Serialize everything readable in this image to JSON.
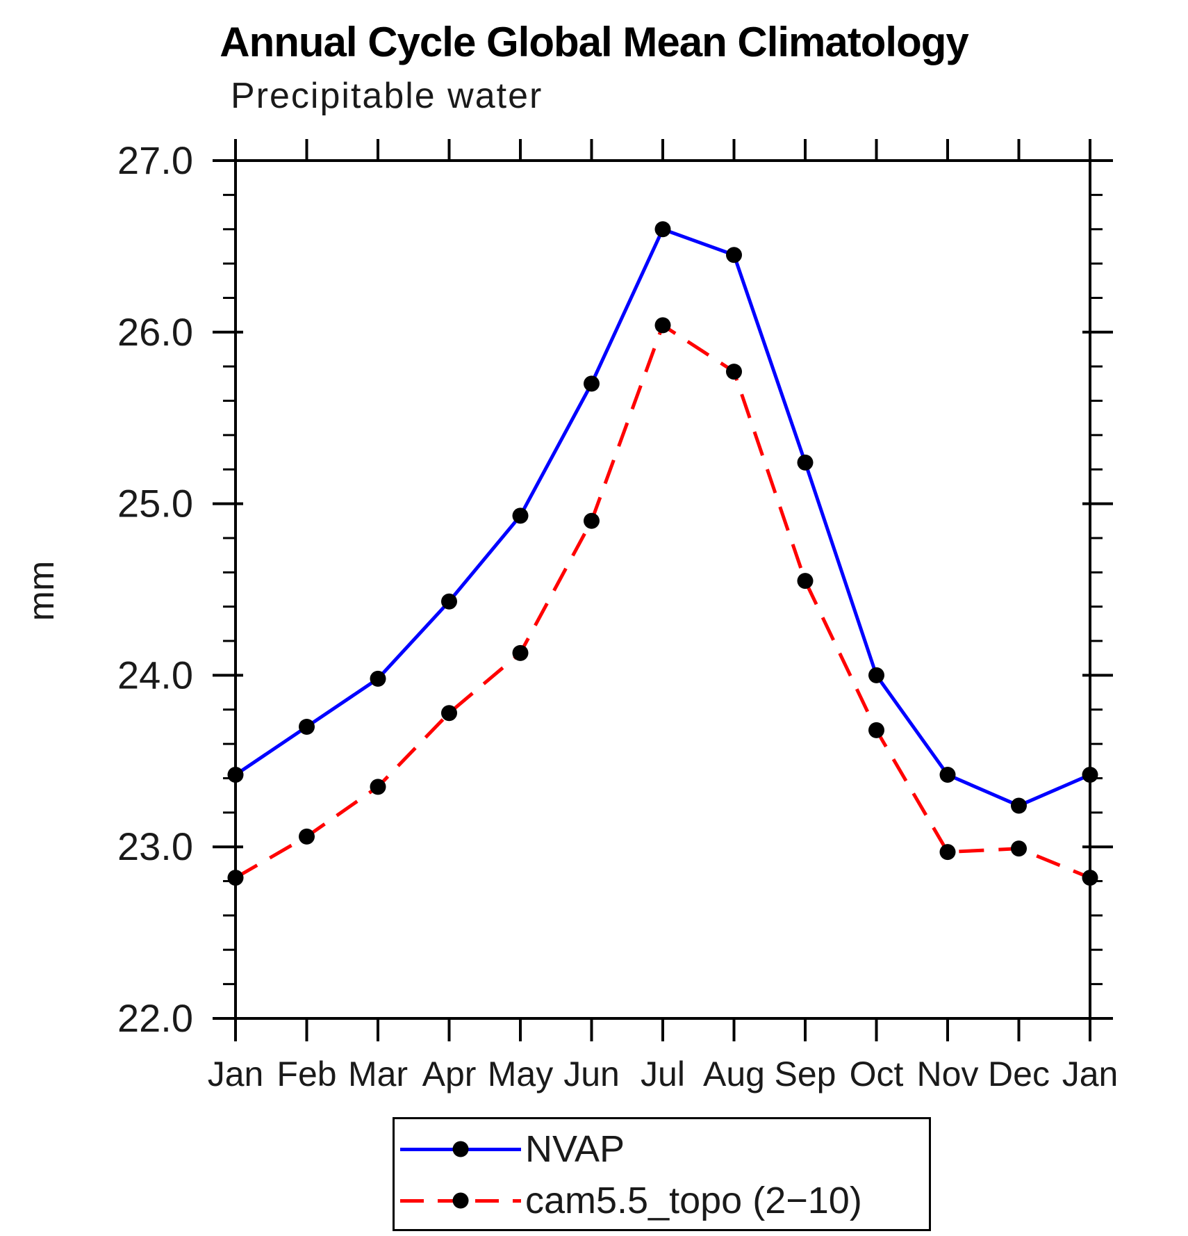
{
  "chart_data": {
    "type": "line",
    "title": "Annual Cycle Global Mean Climatology",
    "subtitle": "Precipitable water",
    "ylabel": "mm",
    "categories": [
      "Jan",
      "Feb",
      "Mar",
      "Apr",
      "May",
      "Jun",
      "Jul",
      "Aug",
      "Sep",
      "Oct",
      "Nov",
      "Dec",
      "Jan"
    ],
    "series": [
      {
        "name": "NVAP",
        "color": "#0000ff",
        "line_style": "solid",
        "marker": "filled-circle",
        "marker_color": "#000000",
        "values": [
          23.42,
          23.7,
          23.98,
          24.43,
          24.93,
          25.7,
          26.6,
          26.45,
          25.24,
          24.0,
          23.42,
          23.24,
          23.42
        ]
      },
      {
        "name": "cam5.5_topo (2−10)",
        "color": "#ff0000",
        "line_style": "dashed",
        "marker": "filled-circle",
        "marker_color": "#000000",
        "values": [
          22.82,
          23.06,
          23.35,
          23.78,
          24.13,
          24.9,
          26.04,
          25.77,
          24.55,
          23.68,
          22.97,
          22.99,
          22.82
        ]
      }
    ],
    "ylim": [
      22.0,
      27.0
    ],
    "y_major_step": 1.0,
    "y_minor_step": 0.2,
    "y_tick_labels": [
      "22.0",
      "23.0",
      "24.0",
      "25.0",
      "26.0",
      "27.0"
    ],
    "grid": false,
    "legend_position": "bottom-center",
    "axis_color": "#000000",
    "background": "#ffffff"
  }
}
